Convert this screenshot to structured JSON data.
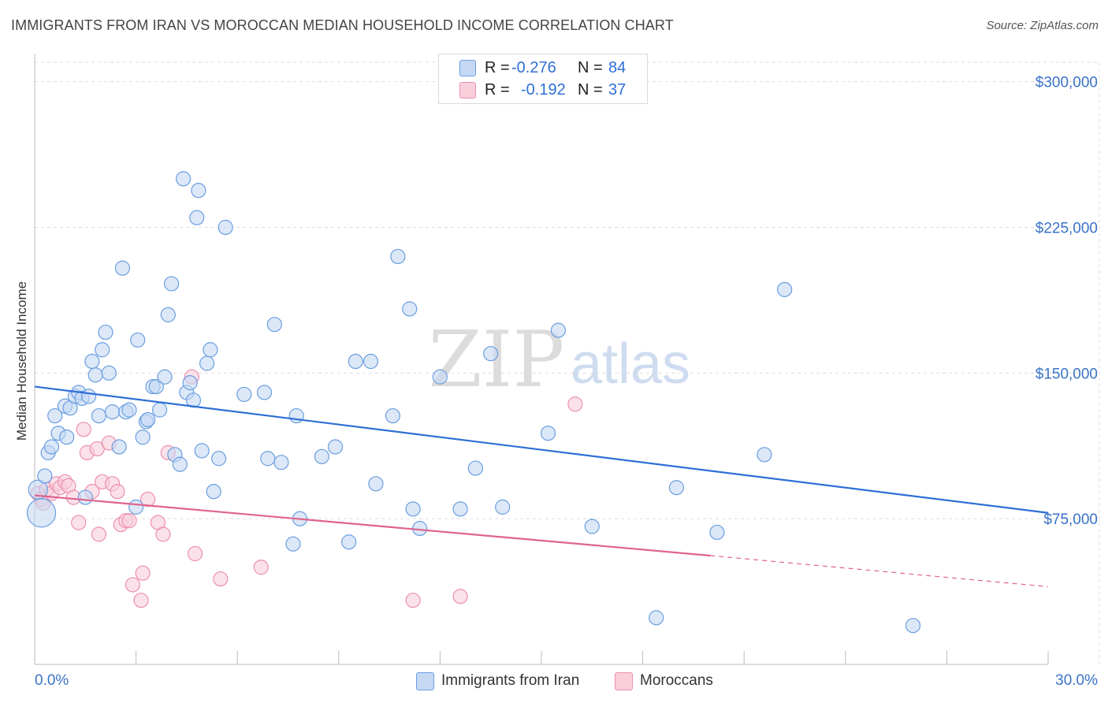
{
  "header": {
    "title": "IMMIGRANTS FROM IRAN VS MOROCCAN MEDIAN HOUSEHOLD INCOME CORRELATION CHART",
    "source": "Source: ZipAtlas.com"
  },
  "watermark": {
    "zip": "ZIP",
    "atlas": "atlas"
  },
  "stats_legend": {
    "r_label": "R =",
    "n_label": "N =",
    "rows": [
      {
        "r": "-0.276",
        "n": "84",
        "color": "#6a9ee0"
      },
      {
        "r": "-0.192",
        "n": "37",
        "color": "#ec8fad"
      }
    ]
  },
  "chart_data": {
    "type": "scatter",
    "title": "IMMIGRANTS FROM IRAN VS MOROCCAN MEDIAN HOUSEHOLD INCOME CORRELATION CHART",
    "xlabel": "",
    "ylabel": "Median Household Income",
    "x_range": [
      0,
      30
    ],
    "y_range": [
      0,
      310000
    ],
    "x_tick_labels": [
      "0.0%",
      "30.0%"
    ],
    "y_ticks": [
      75000,
      150000,
      225000,
      300000
    ],
    "y_tick_labels": [
      "$75,000",
      "$150,000",
      "$225,000",
      "$300,000"
    ],
    "grid": true,
    "legend_position": "bottom",
    "series": [
      {
        "name": "Immigrants from Iran",
        "color": "#6a9ee0",
        "fill": "#c5d8f4",
        "r": -0.276,
        "n": 84,
        "trend": {
          "x_start": 0,
          "y_start": 143000,
          "x_end": 30,
          "y_end": 78000
        },
        "points": [
          [
            0.1,
            90000
          ],
          [
            0.2,
            78000
          ],
          [
            0.3,
            97000
          ],
          [
            0.4,
            109000
          ],
          [
            0.5,
            112000
          ],
          [
            0.6,
            128000
          ],
          [
            0.7,
            119000
          ],
          [
            0.9,
            133000
          ],
          [
            0.95,
            117000
          ],
          [
            1.05,
            132000
          ],
          [
            1.2,
            138000
          ],
          [
            1.3,
            140000
          ],
          [
            1.4,
            137000
          ],
          [
            1.5,
            86000
          ],
          [
            1.6,
            138000
          ],
          [
            1.7,
            156000
          ],
          [
            1.8,
            149000
          ],
          [
            1.9,
            128000
          ],
          [
            2.0,
            162000
          ],
          [
            2.1,
            171000
          ],
          [
            2.2,
            150000
          ],
          [
            2.3,
            130000
          ],
          [
            2.5,
            112000
          ],
          [
            2.6,
            204000
          ],
          [
            2.7,
            130000
          ],
          [
            2.8,
            131000
          ],
          [
            3.0,
            81000
          ],
          [
            3.05,
            167000
          ],
          [
            3.2,
            117000
          ],
          [
            3.3,
            125000
          ],
          [
            3.35,
            126000
          ],
          [
            3.5,
            143000
          ],
          [
            3.6,
            143000
          ],
          [
            3.7,
            131000
          ],
          [
            3.85,
            148000
          ],
          [
            3.95,
            180000
          ],
          [
            4.05,
            196000
          ],
          [
            4.15,
            108000
          ],
          [
            4.3,
            103000
          ],
          [
            4.4,
            250000
          ],
          [
            4.5,
            140000
          ],
          [
            4.6,
            145000
          ],
          [
            4.7,
            136000
          ],
          [
            4.8,
            230000
          ],
          [
            4.85,
            244000
          ],
          [
            4.95,
            110000
          ],
          [
            5.1,
            155000
          ],
          [
            5.2,
            162000
          ],
          [
            5.3,
            89000
          ],
          [
            5.45,
            106000
          ],
          [
            5.65,
            225000
          ],
          [
            6.2,
            139000
          ],
          [
            6.8,
            140000
          ],
          [
            6.9,
            106000
          ],
          [
            7.1,
            175000
          ],
          [
            7.3,
            104000
          ],
          [
            7.65,
            62000
          ],
          [
            7.75,
            128000
          ],
          [
            7.85,
            75000
          ],
          [
            8.5,
            107000
          ],
          [
            8.9,
            112000
          ],
          [
            9.3,
            63000
          ],
          [
            9.5,
            156000
          ],
          [
            9.95,
            156000
          ],
          [
            10.1,
            93000
          ],
          [
            10.6,
            128000
          ],
          [
            10.75,
            210000
          ],
          [
            11.1,
            183000
          ],
          [
            11.2,
            80000
          ],
          [
            11.4,
            70000
          ],
          [
            12.0,
            148000
          ],
          [
            12.6,
            80000
          ],
          [
            13.05,
            101000
          ],
          [
            13.5,
            160000
          ],
          [
            13.85,
            81000
          ],
          [
            15.2,
            119000
          ],
          [
            15.5,
            172000
          ],
          [
            16.5,
            71000
          ],
          [
            18.4,
            24000
          ],
          [
            19.0,
            91000
          ],
          [
            20.2,
            68000
          ],
          [
            21.6,
            108000
          ],
          [
            22.2,
            193000
          ],
          [
            26.0,
            20000
          ]
        ]
      },
      {
        "name": "Moroccans",
        "color": "#ec8fad",
        "fill": "#f9cfdc",
        "r": -0.192,
        "n": 37,
        "trend": {
          "x_start": 0,
          "y_start": 87000,
          "x_end": 20,
          "y_end": 56000,
          "dashed_to": {
            "x": 30,
            "y": 40000
          }
        },
        "points": [
          [
            0.1,
            88000
          ],
          [
            0.2,
            85000
          ],
          [
            0.25,
            83000
          ],
          [
            0.35,
            90000
          ],
          [
            0.5,
            88000
          ],
          [
            0.65,
            93000
          ],
          [
            0.75,
            91000
          ],
          [
            0.9,
            94000
          ],
          [
            1.0,
            92000
          ],
          [
            1.15,
            86000
          ],
          [
            1.3,
            73000
          ],
          [
            1.45,
            121000
          ],
          [
            1.55,
            109000
          ],
          [
            1.7,
            89000
          ],
          [
            1.85,
            111000
          ],
          [
            1.9,
            67000
          ],
          [
            2.0,
            94000
          ],
          [
            2.2,
            114000
          ],
          [
            2.3,
            93000
          ],
          [
            2.45,
            89000
          ],
          [
            2.55,
            72000
          ],
          [
            2.7,
            74000
          ],
          [
            2.8,
            74000
          ],
          [
            2.9,
            41000
          ],
          [
            3.15,
            33000
          ],
          [
            3.2,
            47000
          ],
          [
            3.35,
            85000
          ],
          [
            3.65,
            73000
          ],
          [
            3.8,
            67000
          ],
          [
            3.95,
            109000
          ],
          [
            4.65,
            148000
          ],
          [
            4.75,
            57000
          ],
          [
            5.5,
            44000
          ],
          [
            6.7,
            50000
          ],
          [
            11.2,
            33000
          ],
          [
            12.6,
            35000
          ],
          [
            16.0,
            134000
          ]
        ]
      }
    ]
  }
}
